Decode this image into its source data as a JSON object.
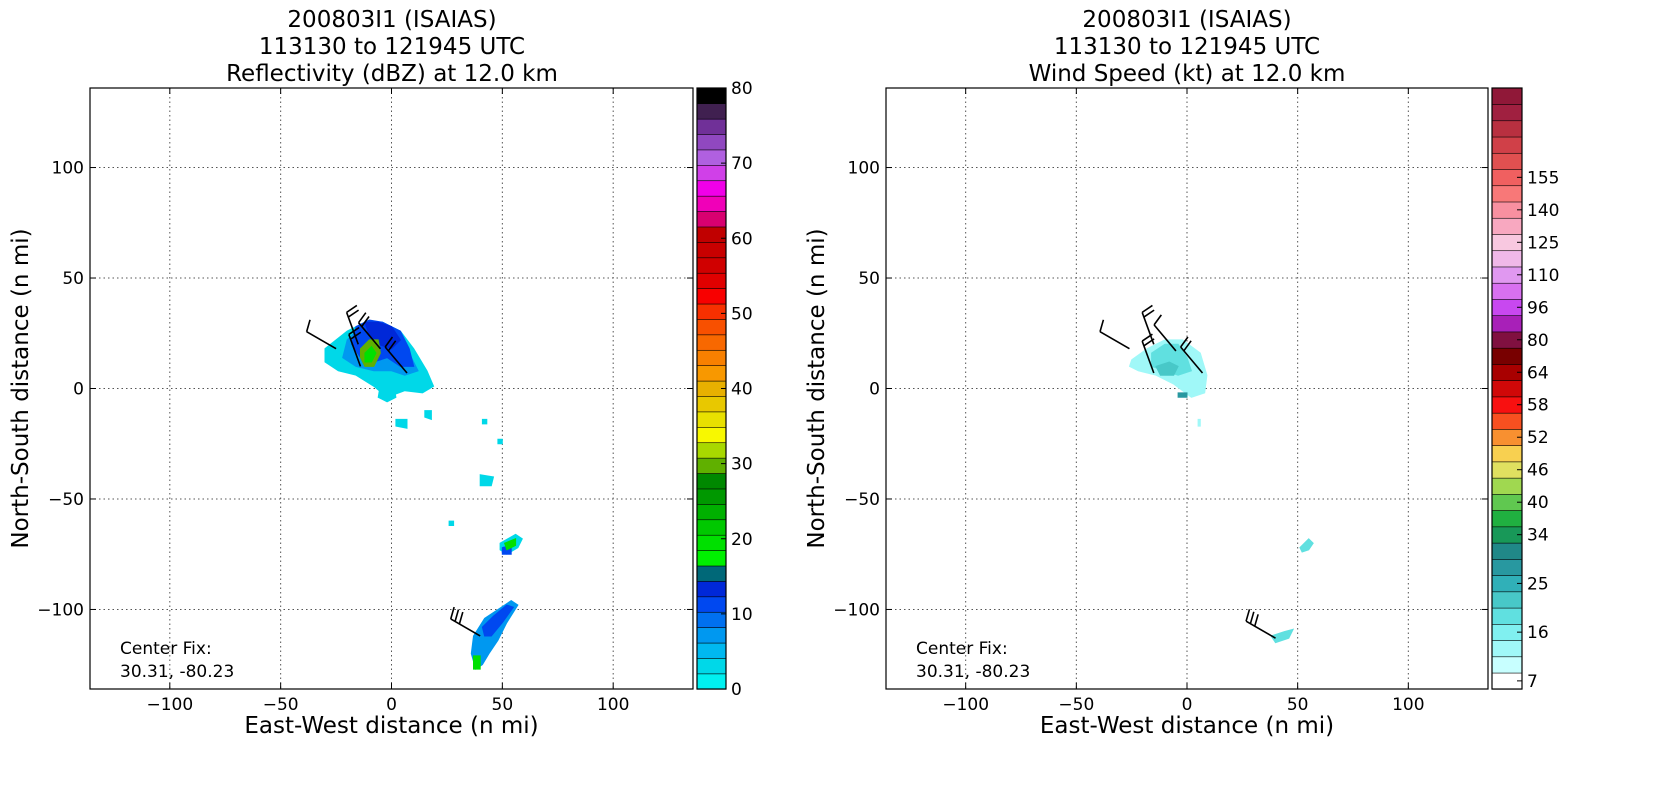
{
  "chart_data": [
    {
      "type": "heatmap",
      "title_lines": [
        "200803I1 (ISAIAS)",
        "113130 to 121945 UTC",
        "Reflectivity (dBZ) at 12.0 km"
      ],
      "xlabel": "East-West distance (n mi)",
      "ylabel": "North-South distance (n mi)",
      "xlim": [
        -136,
        136
      ],
      "ylim": [
        -136,
        136
      ],
      "xticks": [
        -100,
        -50,
        0,
        50,
        100
      ],
      "yticks": [
        -100,
        -50,
        0,
        50,
        100
      ],
      "xtick_labels": [
        "−100",
        "−50",
        "0",
        "50",
        "100"
      ],
      "ytick_labels": [
        "−100",
        "−50",
        "0",
        "50",
        "100"
      ],
      "grid": true,
      "annotation_lines": [
        "Center Fix:",
        "30.31, -80.23"
      ],
      "colorbar": {
        "min": 0,
        "max": 80,
        "tick_values": [
          0,
          10,
          20,
          30,
          40,
          50,
          60,
          70,
          80
        ],
        "tick_labels": [
          "0",
          "10",
          "20",
          "30",
          "40",
          "50",
          "60",
          "70",
          "80"
        ],
        "colors": [
          "#00f0f0",
          "#00d8e8",
          "#00b8f0",
          "#0098f0",
          "#0070f0",
          "#0048f0",
          "#0028d8",
          "#006878",
          "#00f000",
          "#00e000",
          "#00c800",
          "#00b000",
          "#009800",
          "#008800",
          "#60b000",
          "#a8d800",
          "#f8f800",
          "#e8e000",
          "#e8c800",
          "#e8b000",
          "#f89800",
          "#f88000",
          "#f86800",
          "#f85000",
          "#f83000",
          "#f80000",
          "#e00000",
          "#d00000",
          "#c80000",
          "#c00000",
          "#d80070",
          "#f000b8",
          "#f000e8",
          "#d040e8",
          "#b060e0",
          "#9048c0",
          "#703098",
          "#402050",
          "#000000"
        ]
      },
      "regions": [
        {
          "color": "#00d8e8",
          "points": [
            [
              -30,
              18
            ],
            [
              -20,
              26
            ],
            [
              -12,
              30
            ],
            [
              -4,
              30
            ],
            [
              4,
              26
            ],
            [
              10,
              18
            ],
            [
              16,
              8
            ],
            [
              19,
              1
            ],
            [
              14,
              -2
            ],
            [
              6,
              -1
            ],
            [
              -2,
              -4
            ],
            [
              -8,
              1
            ],
            [
              -16,
              6
            ],
            [
              -24,
              8
            ],
            [
              -30,
              12
            ]
          ]
        },
        {
          "color": "#0098f0",
          "points": [
            [
              -20,
              22
            ],
            [
              -14,
              28
            ],
            [
              -6,
              28
            ],
            [
              2,
              24
            ],
            [
              8,
              16
            ],
            [
              12,
              8
            ],
            [
              6,
              6
            ],
            [
              0,
              8
            ],
            [
              -8,
              8
            ],
            [
              -16,
              10
            ],
            [
              -22,
              14
            ]
          ]
        },
        {
          "color": "#0048f0",
          "points": [
            [
              -16,
              28
            ],
            [
              -10,
              31
            ],
            [
              -4,
              30
            ],
            [
              4,
              26
            ],
            [
              8,
              18
            ],
            [
              10,
              10
            ],
            [
              4,
              10
            ],
            [
              -2,
              14
            ],
            [
              -8,
              12
            ],
            [
              -14,
              14
            ],
            [
              -18,
              20
            ]
          ]
        },
        {
          "color": "#0028d8",
          "points": [
            [
              -12,
              30
            ],
            [
              -6,
              30
            ],
            [
              0,
              28
            ],
            [
              4,
              22
            ],
            [
              0,
              18
            ],
            [
              -6,
              20
            ],
            [
              -10,
              24
            ]
          ]
        },
        {
          "color": "#60b000",
          "points": [
            [
              -14,
              18
            ],
            [
              -10,
              22
            ],
            [
              -6,
              22
            ],
            [
              -5,
              16
            ],
            [
              -8,
              10
            ],
            [
              -12,
              10
            ],
            [
              -14,
              14
            ]
          ]
        },
        {
          "color": "#00e000",
          "points": [
            [
              -12,
              16
            ],
            [
              -9,
              19
            ],
            [
              -7,
              16
            ],
            [
              -9,
              12
            ],
            [
              -12,
              12
            ]
          ]
        },
        {
          "color": "#00d8e8",
          "points": [
            [
              -5,
              2
            ],
            [
              1,
              2
            ],
            [
              2,
              -4
            ],
            [
              -2,
              -6
            ],
            [
              -6,
              -4
            ]
          ]
        },
        {
          "color": "#00d8e8",
          "points": [
            [
              2,
              -14
            ],
            [
              7,
              -14
            ],
            [
              7,
              -18
            ],
            [
              2,
              -17
            ]
          ]
        },
        {
          "color": "#00d8e8",
          "points": [
            [
              15,
              -10
            ],
            [
              18,
              -10
            ],
            [
              18,
              -14
            ],
            [
              15,
              -13
            ]
          ]
        },
        {
          "color": "#00d8e8",
          "points": [
            [
              40,
              -39
            ],
            [
              46,
              -40
            ],
            [
              45,
              -44
            ],
            [
              40,
              -44
            ]
          ]
        },
        {
          "color": "#00d8e8",
          "points": [
            [
              41,
              -14
            ],
            [
              43,
              -14
            ],
            [
              43,
              -16
            ],
            [
              41,
              -16
            ]
          ]
        },
        {
          "color": "#00d8e8",
          "points": [
            [
              48,
              -23
            ],
            [
              50,
              -23
            ],
            [
              50,
              -25
            ],
            [
              48,
              -25
            ]
          ]
        },
        {
          "color": "#00d8e8",
          "points": [
            [
              26,
              -60
            ],
            [
              28,
              -60
            ],
            [
              28,
              -62
            ],
            [
              26,
              -62
            ]
          ]
        },
        {
          "color": "#00d8e8",
          "points": [
            [
              49,
              -70
            ],
            [
              56,
              -66
            ],
            [
              59,
              -68
            ],
            [
              57,
              -72
            ],
            [
              52,
              -75
            ],
            [
              49,
              -73
            ]
          ]
        },
        {
          "color": "#0048f0",
          "points": [
            [
              50,
              -72
            ],
            [
              54,
              -71
            ],
            [
              54,
              -75
            ],
            [
              50,
              -75
            ]
          ]
        },
        {
          "color": "#00e000",
          "points": [
            [
              51,
              -70
            ],
            [
              56,
              -68
            ],
            [
              56,
              -71
            ],
            [
              52,
              -73
            ]
          ]
        },
        {
          "color": "#0098f0",
          "points": [
            [
              37,
              -112
            ],
            [
              42,
              -104
            ],
            [
              48,
              -100
            ],
            [
              54,
              -96
            ],
            [
              57,
              -98
            ],
            [
              52,
              -106
            ],
            [
              48,
              -114
            ],
            [
              44,
              -120
            ],
            [
              41,
              -125
            ],
            [
              38,
              -127
            ],
            [
              36,
              -120
            ]
          ]
        },
        {
          "color": "#0048f0",
          "points": [
            [
              41,
              -108
            ],
            [
              46,
              -103
            ],
            [
              52,
              -98
            ],
            [
              55,
              -99
            ],
            [
              50,
              -106
            ],
            [
              45,
              -112
            ],
            [
              42,
              -112
            ]
          ]
        },
        {
          "color": "#00e000",
          "points": [
            [
              37,
              -121
            ],
            [
              40,
              -121
            ],
            [
              40,
              -127
            ],
            [
              37,
              -127
            ]
          ]
        }
      ],
      "barbs": [
        {
          "x": -25,
          "y": 18,
          "dir": 300,
          "flags": 1
        },
        {
          "x": -14,
          "y": 10,
          "dir": 340,
          "flags": 2
        },
        {
          "x": -5,
          "y": 18,
          "dir": 320,
          "flags": 2
        },
        {
          "x": -15,
          "y": 20,
          "dir": 340,
          "flags": 2
        },
        {
          "x": 7,
          "y": 7,
          "dir": 320,
          "flags": 2
        },
        {
          "x": 40,
          "y": -112,
          "dir": 300,
          "flags": 3
        }
      ]
    },
    {
      "type": "heatmap",
      "title_lines": [
        "200803I1 (ISAIAS)",
        "113130 to 121945 UTC",
        "Wind Speed (kt) at 12.0 km"
      ],
      "xlabel": "East-West distance (n mi)",
      "ylabel": "North-South distance (n mi)",
      "xlim": [
        -136,
        136
      ],
      "ylim": [
        -136,
        136
      ],
      "xticks": [
        -100,
        -50,
        0,
        50,
        100
      ],
      "yticks": [
        -100,
        -50,
        0,
        50,
        100
      ],
      "xtick_labels": [
        "−100",
        "−50",
        "0",
        "50",
        "100"
      ],
      "ytick_labels": [
        "−100",
        "−50",
        "0",
        "50",
        "100"
      ],
      "grid": true,
      "annotation_lines": [
        "Center Fix:",
        "30.31, -80.23"
      ],
      "colorbar": {
        "tick_labels": [
          "7",
          "16",
          "25",
          "34",
          "40",
          "46",
          "52",
          "58",
          "64",
          "80",
          "96",
          "110",
          "125",
          "140",
          "155"
        ],
        "tick_indices": [
          0.5,
          3.5,
          6.5,
          9.5,
          11.5,
          13.5,
          15.5,
          17.5,
          19.5,
          21.5,
          23.5,
          25.5,
          27.5,
          29.5,
          31.5
        ],
        "colors": [
          "#ffffff",
          "#c8ffff",
          "#a0f8f8",
          "#80f0f0",
          "#60e0e0",
          "#48c8c8",
          "#30b0b8",
          "#2898a0",
          "#208888",
          "#189858",
          "#20b040",
          "#60c850",
          "#a0d850",
          "#e0e060",
          "#f8d050",
          "#f89030",
          "#f85020",
          "#f81010",
          "#d00808",
          "#a80000",
          "#780000",
          "#801040",
          "#a820b8",
          "#c848f0",
          "#d870f0",
          "#e098f0",
          "#f0b8e8",
          "#f8c8e0",
          "#f8a8c0",
          "#f890a0",
          "#f87878",
          "#f06060",
          "#e05050",
          "#d04048",
          "#b83040",
          "#a02040",
          "#901838"
        ]
      },
      "regions": [
        {
          "color": "#a0f8f8",
          "points": [
            [
              -25,
              13
            ],
            [
              -18,
              18
            ],
            [
              -10,
              22
            ],
            [
              -2,
              22
            ],
            [
              6,
              16
            ],
            [
              9,
              6
            ],
            [
              8,
              -2
            ],
            [
              2,
              -4
            ],
            [
              -6,
              2
            ],
            [
              -14,
              6
            ],
            [
              -22,
              8
            ],
            [
              -26,
              10
            ]
          ]
        },
        {
          "color": "#60e0e0",
          "points": [
            [
              -16,
              16
            ],
            [
              -10,
              20
            ],
            [
              -4,
              20
            ],
            [
              0,
              14
            ],
            [
              2,
              8
            ],
            [
              -4,
              6
            ],
            [
              -10,
              8
            ],
            [
              -16,
              10
            ]
          ]
        },
        {
          "color": "#48c8c8",
          "points": [
            [
              -14,
              10
            ],
            [
              -8,
              12
            ],
            [
              -4,
              10
            ],
            [
              -6,
              6
            ],
            [
              -12,
              6
            ]
          ]
        },
        {
          "color": "#2898a0",
          "points": [
            [
              -4,
              -2
            ],
            [
              0,
              -2
            ],
            [
              0,
              -4
            ],
            [
              -4,
              -4
            ]
          ]
        },
        {
          "color": "#a0f8f8",
          "points": [
            [
              5,
              -14
            ],
            [
              6,
              -14
            ],
            [
              6,
              -17
            ],
            [
              5,
              -17
            ]
          ]
        },
        {
          "color": "#60e0e0",
          "points": [
            [
              51,
              -72
            ],
            [
              55,
              -68
            ],
            [
              57,
              -70
            ],
            [
              55,
              -73
            ],
            [
              52,
              -74
            ]
          ]
        },
        {
          "color": "#60e0e0",
          "points": [
            [
              38,
              -112
            ],
            [
              44,
              -110
            ],
            [
              48,
              -109
            ],
            [
              46,
              -113
            ],
            [
              40,
              -115
            ]
          ]
        }
      ],
      "barbs": [
        {
          "x": -26,
          "y": 18,
          "dir": 300,
          "flags": 1
        },
        {
          "x": -15,
          "y": 7,
          "dir": 340,
          "flags": 2
        },
        {
          "x": -5,
          "y": 17,
          "dir": 320,
          "flags": 1
        },
        {
          "x": -15,
          "y": 20,
          "dir": 340,
          "flags": 2
        },
        {
          "x": 7,
          "y": 7,
          "dir": 320,
          "flags": 2
        },
        {
          "x": 40,
          "y": -113,
          "dir": 300,
          "flags": 3
        }
      ]
    }
  ]
}
